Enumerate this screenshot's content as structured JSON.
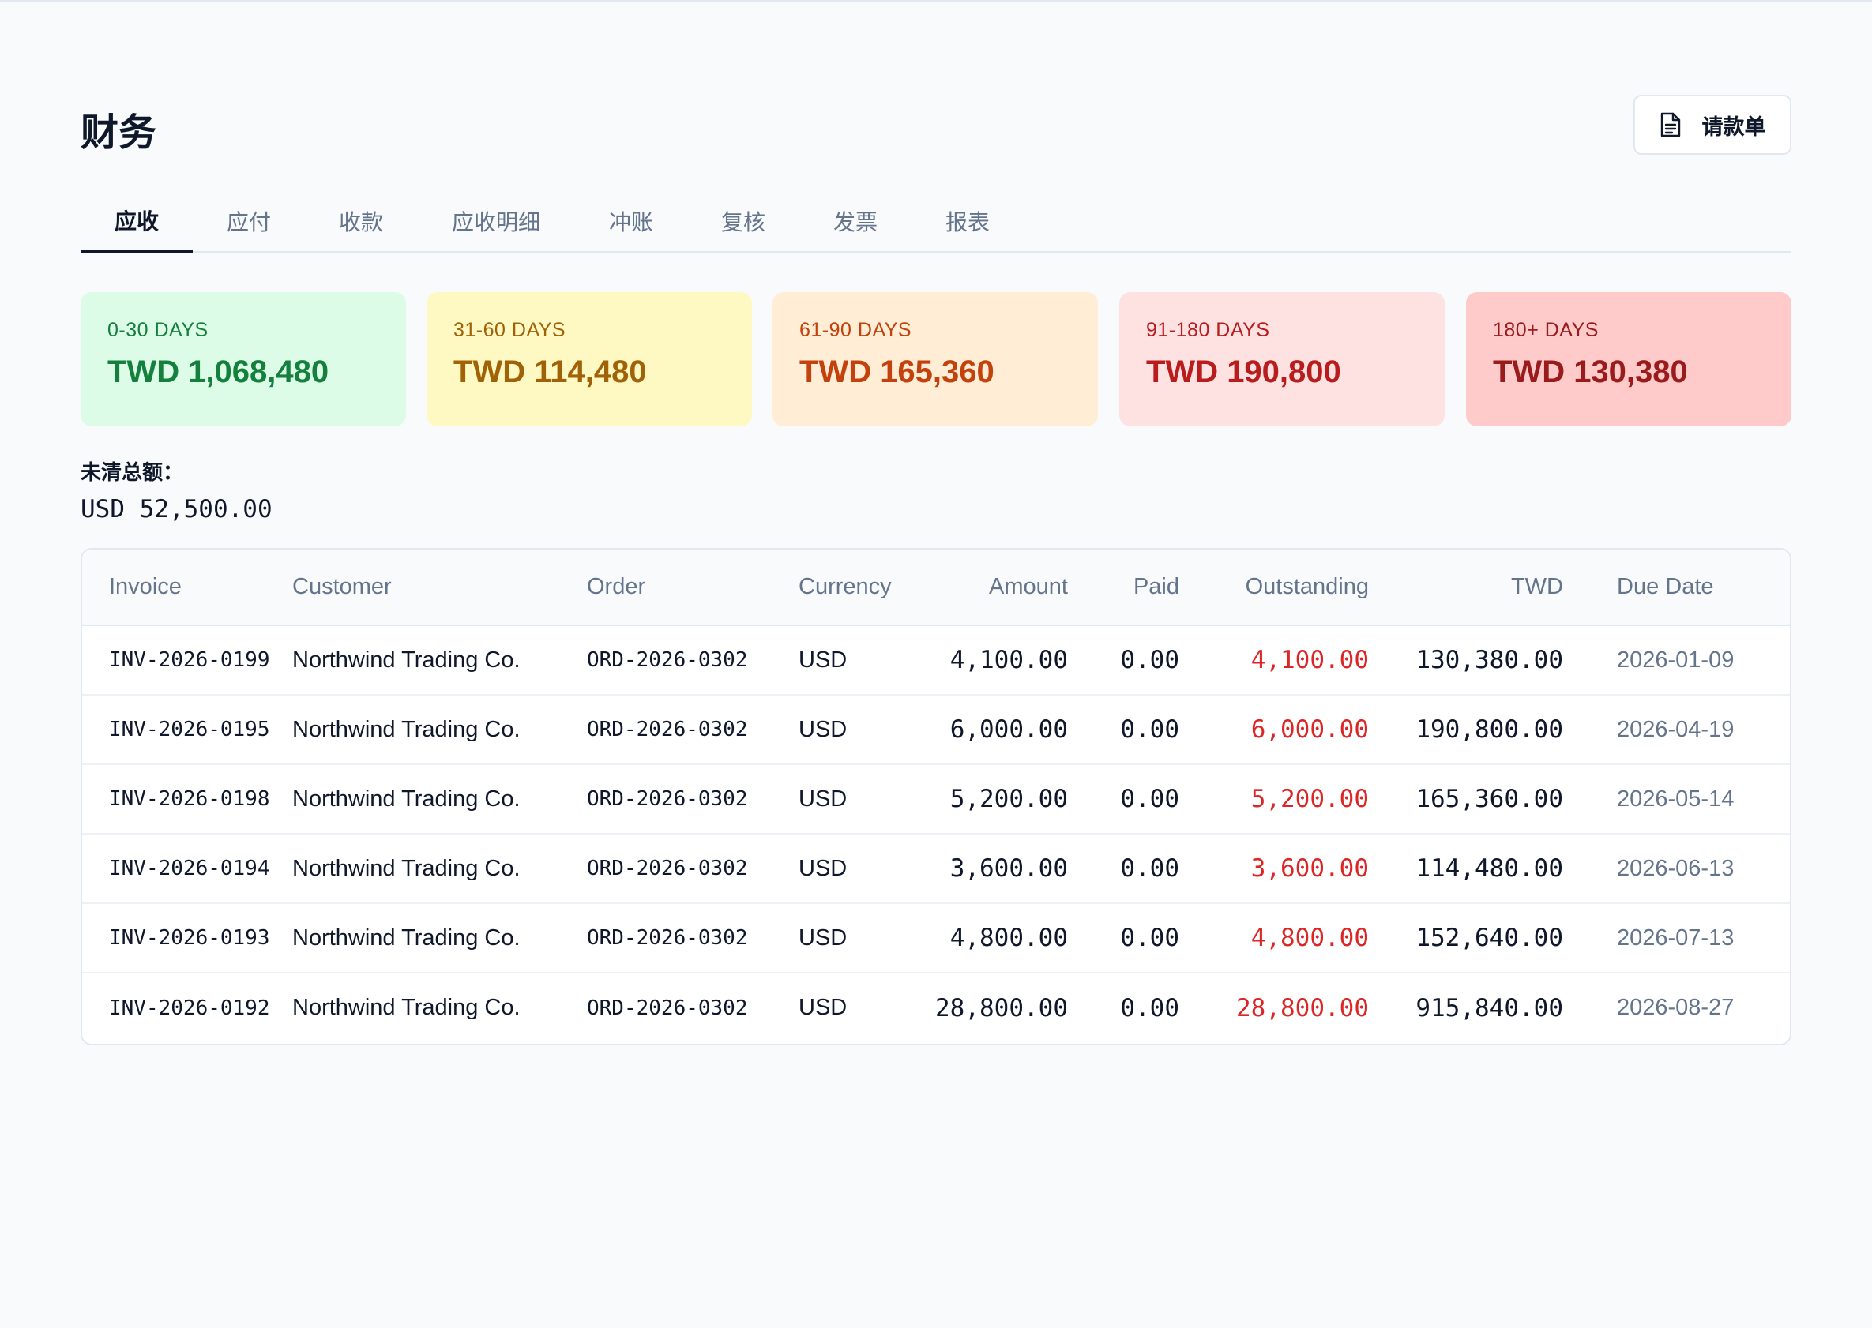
{
  "header": {
    "title": "财务",
    "invoice_button_label": "请款单",
    "invoice_button_icon": "document-icon"
  },
  "tabs": [
    {
      "label": "应收",
      "active": true
    },
    {
      "label": "应付",
      "active": false
    },
    {
      "label": "收款",
      "active": false
    },
    {
      "label": "应收明细",
      "active": false
    },
    {
      "label": "冲账",
      "active": false
    },
    {
      "label": "复核",
      "active": false
    },
    {
      "label": "发票",
      "active": false
    },
    {
      "label": "报表",
      "active": false
    }
  ],
  "aging": [
    {
      "label": "0-30 DAYS",
      "value": "TWD 1,068,480",
      "bg": "#dcfce7",
      "fg": "#15803d"
    },
    {
      "label": "31-60 DAYS",
      "value": "TWD 114,480",
      "bg": "#fef9c3",
      "fg": "#a16207"
    },
    {
      "label": "61-90 DAYS",
      "value": "TWD 165,360",
      "bg": "#ffedd5",
      "fg": "#c2410c"
    },
    {
      "label": "91-180 DAYS",
      "value": "TWD 190,800",
      "bg": "#fee2e2",
      "fg": "#b91c1c"
    },
    {
      "label": "180+ DAYS",
      "value": "TWD 130,380",
      "bg": "#fecaca",
      "fg": "#991b1b"
    }
  ],
  "total": {
    "label": "未清总额：",
    "value": "USD 52,500.00"
  },
  "table": {
    "columns": [
      "Invoice",
      "Customer",
      "Order",
      "Currency",
      "Amount",
      "Paid",
      "Outstanding",
      "TWD",
      "Due Date"
    ],
    "rows": [
      {
        "invoice": "INV-2026-0199",
        "customer": "Northwind Trading Co.",
        "order": "ORD-2026-0302",
        "currency": "USD",
        "amount": "4,100.00",
        "paid": "0.00",
        "outstanding": "4,100.00",
        "twd": "130,380.00",
        "due": "2026-01-09"
      },
      {
        "invoice": "INV-2026-0195",
        "customer": "Northwind Trading Co.",
        "order": "ORD-2026-0302",
        "currency": "USD",
        "amount": "6,000.00",
        "paid": "0.00",
        "outstanding": "6,000.00",
        "twd": "190,800.00",
        "due": "2026-04-19"
      },
      {
        "invoice": "INV-2026-0198",
        "customer": "Northwind Trading Co.",
        "order": "ORD-2026-0302",
        "currency": "USD",
        "amount": "5,200.00",
        "paid": "0.00",
        "outstanding": "5,200.00",
        "twd": "165,360.00",
        "due": "2026-05-14"
      },
      {
        "invoice": "INV-2026-0194",
        "customer": "Northwind Trading Co.",
        "order": "ORD-2026-0302",
        "currency": "USD",
        "amount": "3,600.00",
        "paid": "0.00",
        "outstanding": "3,600.00",
        "twd": "114,480.00",
        "due": "2026-06-13"
      },
      {
        "invoice": "INV-2026-0193",
        "customer": "Northwind Trading Co.",
        "order": "ORD-2026-0302",
        "currency": "USD",
        "amount": "4,800.00",
        "paid": "0.00",
        "outstanding": "4,800.00",
        "twd": "152,640.00",
        "due": "2026-07-13"
      },
      {
        "invoice": "INV-2026-0192",
        "customer": "Northwind Trading Co.",
        "order": "ORD-2026-0302",
        "currency": "USD",
        "amount": "28,800.00",
        "paid": "0.00",
        "outstanding": "28,800.00",
        "twd": "915,840.00",
        "due": "2026-08-27"
      }
    ]
  }
}
